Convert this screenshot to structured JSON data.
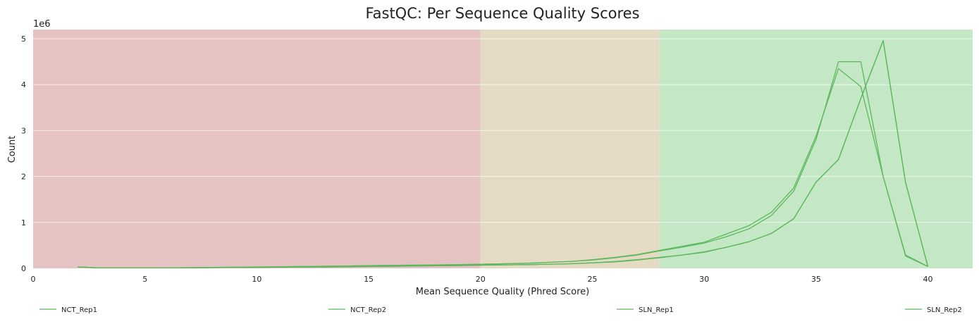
{
  "chart_data": {
    "type": "line",
    "title": "FastQC: Per Sequence Quality Scores",
    "xlabel": "Mean Sequence Quality (Phred Score)",
    "ylabel": "Count",
    "y_offset_label": "1e6",
    "xlim": [
      0,
      42
    ],
    "ylim": [
      0,
      5.2
    ],
    "x_ticks": [
      0,
      5,
      10,
      15,
      20,
      25,
      30,
      35,
      40
    ],
    "y_ticks": [
      0,
      1,
      2,
      3,
      4,
      5
    ],
    "grid": true,
    "legend_position": "bottom",
    "line_color": "#5cb85c",
    "bands": [
      {
        "from": 0,
        "to": 20,
        "color": "#e5c3c3"
      },
      {
        "from": 20,
        "to": 28,
        "color": "#e5dbc5"
      },
      {
        "from": 28,
        "to": 42,
        "color": "#c4e7c5"
      }
    ],
    "x": [
      2,
      3,
      4,
      5,
      6,
      7,
      8,
      9,
      10,
      11,
      12,
      13,
      14,
      15,
      16,
      17,
      18,
      19,
      20,
      21,
      22,
      23,
      24,
      25,
      26,
      27,
      28,
      29,
      30,
      31,
      32,
      33,
      34,
      35,
      36,
      37,
      38,
      39,
      40
    ],
    "series": [
      {
        "name": "NCT_Rep1",
        "values": [
          0.03,
          0.01,
          0.01,
          0.01,
          0.01,
          0.01,
          0.015,
          0.02,
          0.02,
          0.025,
          0.03,
          0.03,
          0.035,
          0.04,
          0.045,
          0.05,
          0.055,
          0.06,
          0.07,
          0.075,
          0.08,
          0.09,
          0.1,
          0.12,
          0.15,
          0.19,
          0.24,
          0.29,
          0.36,
          0.46,
          0.58,
          0.76,
          1.08,
          1.88,
          2.37,
          3.7,
          4.96,
          1.87,
          0.04
        ]
      },
      {
        "name": "NCT_Rep2",
        "values": [
          0.03,
          0.01,
          0.01,
          0.01,
          0.01,
          0.01,
          0.015,
          0.02,
          0.02,
          0.025,
          0.03,
          0.03,
          0.035,
          0.04,
          0.045,
          0.05,
          0.055,
          0.06,
          0.07,
          0.075,
          0.08,
          0.09,
          0.1,
          0.12,
          0.14,
          0.18,
          0.23,
          0.29,
          0.35,
          0.46,
          0.58,
          0.76,
          1.08,
          1.88,
          2.37,
          3.7,
          4.96,
          1.87,
          0.04
        ]
      },
      {
        "name": "SLN_Rep1",
        "values": [
          0.03,
          0.01,
          0.01,
          0.01,
          0.01,
          0.015,
          0.02,
          0.025,
          0.03,
          0.035,
          0.04,
          0.045,
          0.05,
          0.06,
          0.065,
          0.07,
          0.075,
          0.08,
          0.09,
          0.1,
          0.11,
          0.13,
          0.15,
          0.18,
          0.23,
          0.29,
          0.38,
          0.46,
          0.55,
          0.69,
          0.86,
          1.15,
          1.68,
          2.81,
          4.5,
          4.5,
          2.0,
          0.29,
          0.04
        ]
      },
      {
        "name": "SLN_Rep2",
        "values": [
          0.03,
          0.01,
          0.01,
          0.01,
          0.01,
          0.015,
          0.02,
          0.025,
          0.03,
          0.035,
          0.04,
          0.045,
          0.05,
          0.06,
          0.065,
          0.07,
          0.075,
          0.08,
          0.09,
          0.1,
          0.11,
          0.13,
          0.15,
          0.19,
          0.24,
          0.3,
          0.39,
          0.48,
          0.57,
          0.75,
          0.93,
          1.22,
          1.75,
          2.88,
          4.35,
          3.96,
          2.0,
          0.27,
          0.04
        ]
      }
    ]
  }
}
